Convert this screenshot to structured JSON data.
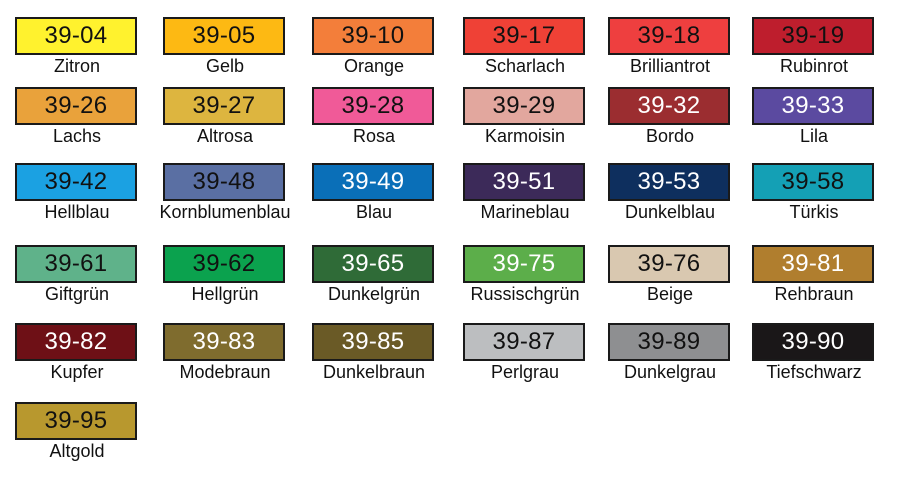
{
  "swatches": [
    {
      "code": "39-04",
      "name": "Zitron",
      "color": "#FFF22E",
      "text": "#111111"
    },
    {
      "code": "39-05",
      "name": "Gelb",
      "color": "#FDB913",
      "text": "#111111"
    },
    {
      "code": "39-10",
      "name": "Orange",
      "color": "#F37E3A",
      "text": "#111111"
    },
    {
      "code": "39-17",
      "name": "Scharlach",
      "color": "#EF4136",
      "text": "#111111"
    },
    {
      "code": "39-18",
      "name": "Brilliantrot",
      "color": "#EE3F3F",
      "text": "#111111"
    },
    {
      "code": "39-19",
      "name": "Rubinrot",
      "color": "#BE1E2D",
      "text": "#111111"
    },
    {
      "code": "39-26",
      "name": "Lachs",
      "color": "#E9A23B",
      "text": "#111111"
    },
    {
      "code": "39-27",
      "name": "Altrosa",
      "color": "#DDB53F",
      "text": "#111111"
    },
    {
      "code": "39-28",
      "name": "Rosa",
      "color": "#F05A98",
      "text": "#111111"
    },
    {
      "code": "39-29",
      "name": "Karmoisin",
      "color": "#E2A79E",
      "text": "#111111"
    },
    {
      "code": "39-32",
      "name": "Bordo",
      "color": "#9B2D30",
      "text": "#ffffff"
    },
    {
      "code": "39-33",
      "name": "Lila",
      "color": "#5B4AA0",
      "text": "#ffffff"
    },
    {
      "code": "39-42",
      "name": "Hellblau",
      "color": "#1BA1E2",
      "text": "#111111"
    },
    {
      "code": "39-48",
      "name": "Kornblumenblau",
      "color": "#5A6FA3",
      "text": "#111111"
    },
    {
      "code": "39-49",
      "name": "Blau",
      "color": "#0A6FB8",
      "text": "#ffffff"
    },
    {
      "code": "39-51",
      "name": "Marineblau",
      "color": "#3C2A59",
      "text": "#ffffff"
    },
    {
      "code": "39-53",
      "name": "Dunkelblau",
      "color": "#0E2F5E",
      "text": "#ffffff"
    },
    {
      "code": "39-58",
      "name": "Türkis",
      "color": "#14A0B5",
      "text": "#111111"
    },
    {
      "code": "39-61",
      "name": "Giftgrün",
      "color": "#5FB28A",
      "text": "#111111"
    },
    {
      "code": "39-62",
      "name": "Hellgrün",
      "color": "#0BA24E",
      "text": "#111111"
    },
    {
      "code": "39-65",
      "name": "Dunkelgrün",
      "color": "#2F6B37",
      "text": "#ffffff"
    },
    {
      "code": "39-75",
      "name": "Russischgrün",
      "color": "#5CAE4A",
      "text": "#ffffff"
    },
    {
      "code": "39-76",
      "name": "Beige",
      "color": "#D9C8B0",
      "text": "#111111"
    },
    {
      "code": "39-81",
      "name": "Rehbraun",
      "color": "#B07E2E",
      "text": "#ffffff"
    },
    {
      "code": "39-82",
      "name": "Kupfer",
      "color": "#6E1016",
      "text": "#ffffff"
    },
    {
      "code": "39-83",
      "name": "Modebraun",
      "color": "#7F6C2E",
      "text": "#ffffff"
    },
    {
      "code": "39-85",
      "name": "Dunkelbraun",
      "color": "#6A5A26",
      "text": "#ffffff"
    },
    {
      "code": "39-87",
      "name": "Perlgrau",
      "color": "#BCBEC0",
      "text": "#111111"
    },
    {
      "code": "39-89",
      "name": "Dunkelgrau",
      "color": "#8E8F91",
      "text": "#111111"
    },
    {
      "code": "39-90",
      "name": "Tiefschwarz",
      "color": "#1A1718",
      "text": "#ffffff"
    },
    {
      "code": "39-95",
      "name": "Altgold",
      "color": "#B8982E",
      "text": "#111111"
    }
  ]
}
